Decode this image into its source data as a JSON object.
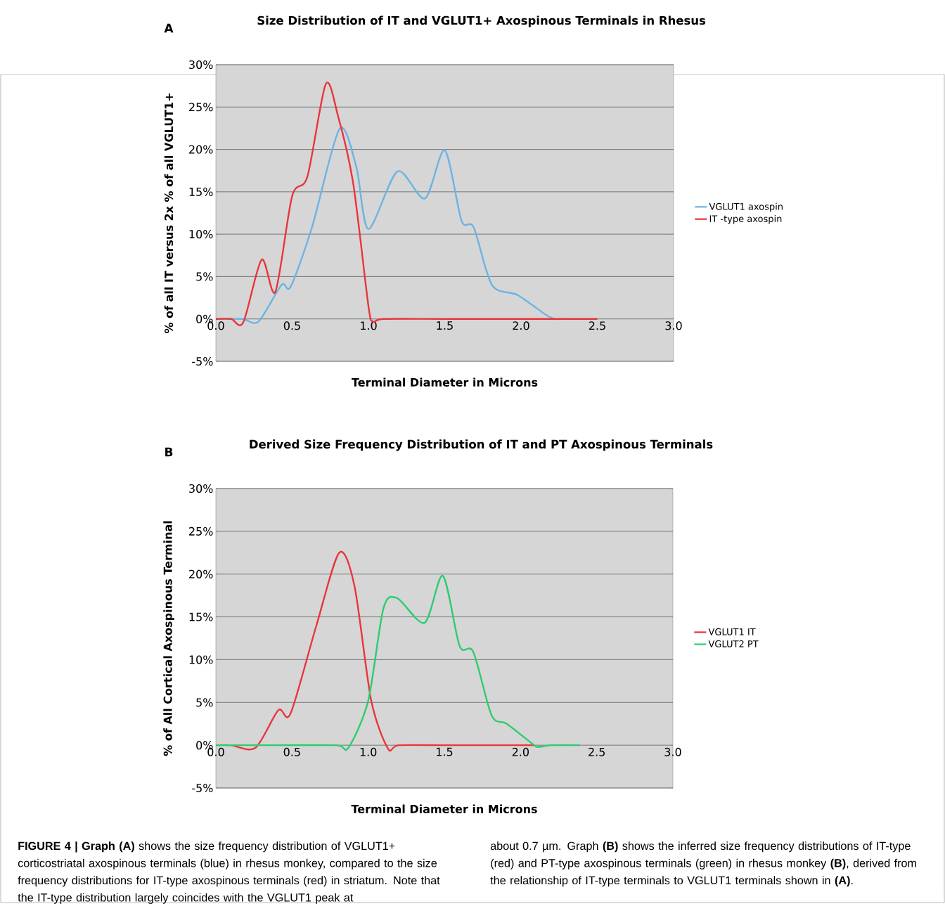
{
  "chart_data": [
    {
      "type": "line",
      "title": "Size Distribution of IT and VGLUT1+ Axospinous Terminals in Rhesus",
      "xlabel": "Terminal Diameter in Microns",
      "ylabel": "% of all IT versus 2x % of all VGLUT1+",
      "annotations": [
        "A"
      ],
      "xlim": [
        0,
        3
      ],
      "ylim": [
        -5,
        30
      ],
      "xticks": [
        {
          "value": 0,
          "label": "0.0"
        },
        {
          "value": 0.5,
          "label": "0.5"
        },
        {
          "value": 1,
          "label": "1.0"
        },
        {
          "value": 1.5,
          "label": "1.5"
        },
        {
          "value": 2,
          "label": "2.0"
        },
        {
          "value": 2.5,
          "label": "2.5"
        },
        {
          "value": 3,
          "label": "3.0"
        }
      ],
      "yticks": [
        {
          "value": -5,
          "label": "-5%"
        },
        {
          "value": 0,
          "label": "0%"
        },
        {
          "value": 5,
          "label": "5%"
        },
        {
          "value": 10,
          "label": "10%"
        },
        {
          "value": 15,
          "label": "15%"
        },
        {
          "value": 20,
          "label": "20%"
        },
        {
          "value": 25,
          "label": "25%"
        },
        {
          "value": 30,
          "label": "30%"
        }
      ],
      "grid": "y",
      "legend": "right",
      "series": [
        {
          "name": "VGLUT1 axospin",
          "color": "#6cb4e4",
          "x": [
            0,
            0.1,
            0.18,
            0.28,
            0.43,
            0.49,
            0.63,
            0.81,
            0.92,
            1.0,
            1.19,
            1.37,
            1.5,
            1.61,
            1.69,
            1.81,
            1.98,
            2.19,
            2.3,
            2.5
          ],
          "values": [
            0,
            0,
            0,
            -0.3,
            4.0,
            3.8,
            10.8,
            22.4,
            18.0,
            10.6,
            17.4,
            14.2,
            19.9,
            11.6,
            10.8,
            4.0,
            2.8,
            0.2,
            0,
            0
          ]
        },
        {
          "name": "IT -type axospin",
          "color": "#e8363c",
          "x": [
            0,
            0.1,
            0.18,
            0.3,
            0.39,
            0.5,
            0.6,
            0.72,
            0.8,
            0.9,
            1.0,
            1.03,
            1.1,
            1.5,
            2.0,
            2.5
          ],
          "values": [
            0,
            0,
            -0.4,
            7.0,
            3.2,
            14.5,
            16.8,
            27.7,
            24.0,
            16.0,
            1.5,
            -0.3,
            0,
            0,
            0,
            0
          ]
        }
      ]
    },
    {
      "type": "line",
      "title": "Derived Size Frequency Distribution of IT and PT Axospinous Terminals",
      "xlabel": "Terminal Diameter in Microns",
      "ylabel": "% of All Cortical Axospinous Terminal",
      "annotations": [
        "B",
        "**FIGURE 4 | Graph (A)** shows the size frequency distribution of VGLUT1+ corticostriatal axospinous terminals (blue) in rhesus monkey, compared to the size frequency distributions for IT-type axospinous terminals (red) in striatum. Note that the IT-type distribution largely coincides with the VGLUT1 peak at",
        "about 0.7 µm. Graph **(B)** shows the inferred size frequency distributions of IT-type (red) and PT-type axospinous terminals (green) in rhesus monkey **(B)**, derived from the relationship of IT-type terminals to VGLUT1 terminals shown in **(A)**."
      ],
      "xlim": [
        0,
        3
      ],
      "ylim": [
        -5,
        30
      ],
      "xticks": [
        {
          "value": 0,
          "label": "0.0"
        },
        {
          "value": 0.5,
          "label": "0.5"
        },
        {
          "value": 1,
          "label": "1.0"
        },
        {
          "value": 1.5,
          "label": "1.5"
        },
        {
          "value": 2,
          "label": "2.0"
        },
        {
          "value": 2.5,
          "label": "2.5"
        },
        {
          "value": 3,
          "label": "3.0"
        }
      ],
      "yticks": [
        {
          "value": -5,
          "label": "-5%"
        },
        {
          "value": 0,
          "label": "0%"
        },
        {
          "value": 5,
          "label": "5%"
        },
        {
          "value": 10,
          "label": "10%"
        },
        {
          "value": 15,
          "label": "15%"
        },
        {
          "value": 20,
          "label": "20%"
        },
        {
          "value": 25,
          "label": "25%"
        },
        {
          "value": 30,
          "label": "30%"
        }
      ],
      "grid": "y",
      "legend": "right",
      "series": [
        {
          "name": "VGLUT1 IT",
          "color": "#e8363c",
          "x": [
            0,
            0.1,
            0.26,
            0.41,
            0.49,
            0.66,
            0.81,
            0.91,
            1.02,
            1.13,
            1.2,
            1.5,
            1.8,
            2.09
          ],
          "values": [
            0,
            0,
            -0.3,
            4.1,
            3.7,
            14.0,
            22.5,
            18.6,
            5.2,
            -0.4,
            0,
            0,
            0,
            0
          ]
        },
        {
          "name": "VGLUT2 PT",
          "color": "#2ecc71",
          "x": [
            0,
            0.4,
            0.79,
            0.87,
            1.0,
            1.1,
            1.19,
            1.37,
            1.49,
            1.6,
            1.69,
            1.81,
            1.91,
            2.09,
            2.12,
            2.2,
            2.39
          ],
          "values": [
            0,
            0,
            0,
            -0.3,
            5.2,
            16.0,
            17.2,
            14.3,
            19.8,
            11.6,
            10.9,
            3.5,
            2.5,
            0,
            -0.2,
            0,
            0
          ]
        }
      ]
    }
  ]
}
